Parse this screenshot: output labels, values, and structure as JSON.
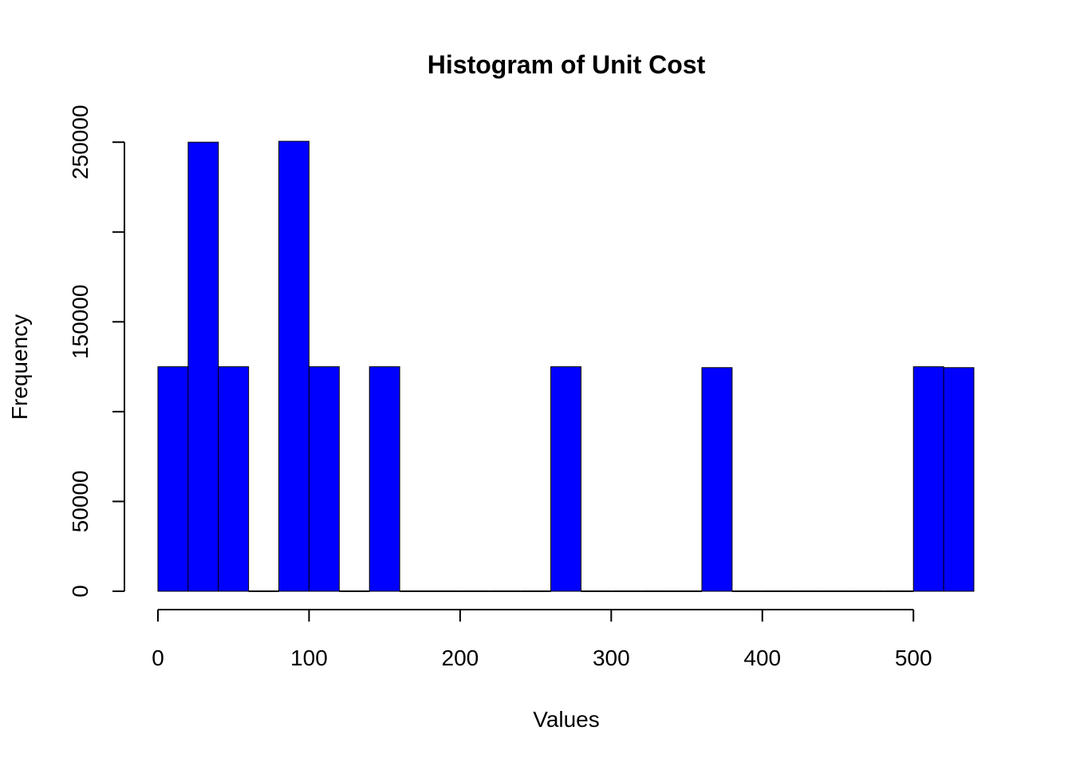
{
  "chart_data": {
    "type": "bar",
    "title": "Histogram of Unit Cost",
    "xlabel": "Values",
    "ylabel": "Frequency",
    "xlim": [
      0,
      540
    ],
    "ylim": [
      0,
      250000
    ],
    "x_ticks": [
      0,
      100,
      200,
      300,
      400,
      500
    ],
    "y_ticks": [
      0,
      50000,
      100000,
      150000,
      200000,
      250000
    ],
    "y_tick_labels": [
      "0",
      "50000",
      "",
      "150000",
      "",
      "250000"
    ],
    "bin_width": 20,
    "bins": [
      {
        "start": 0,
        "end": 20,
        "value": 125000
      },
      {
        "start": 20,
        "end": 40,
        "value": 250000
      },
      {
        "start": 40,
        "end": 60,
        "value": 125000
      },
      {
        "start": 60,
        "end": 80,
        "value": 0
      },
      {
        "start": 80,
        "end": 100,
        "value": 250500
      },
      {
        "start": 100,
        "end": 120,
        "value": 125000
      },
      {
        "start": 120,
        "end": 140,
        "value": 0
      },
      {
        "start": 140,
        "end": 160,
        "value": 125000
      },
      {
        "start": 160,
        "end": 180,
        "value": 0
      },
      {
        "start": 180,
        "end": 200,
        "value": 0
      },
      {
        "start": 200,
        "end": 220,
        "value": 0
      },
      {
        "start": 220,
        "end": 240,
        "value": 0
      },
      {
        "start": 240,
        "end": 260,
        "value": 0
      },
      {
        "start": 260,
        "end": 280,
        "value": 125000
      },
      {
        "start": 280,
        "end": 300,
        "value": 0
      },
      {
        "start": 300,
        "end": 320,
        "value": 0
      },
      {
        "start": 320,
        "end": 340,
        "value": 0
      },
      {
        "start": 340,
        "end": 360,
        "value": 0
      },
      {
        "start": 360,
        "end": 380,
        "value": 124500
      },
      {
        "start": 380,
        "end": 400,
        "value": 0
      },
      {
        "start": 400,
        "end": 420,
        "value": 0
      },
      {
        "start": 420,
        "end": 440,
        "value": 0
      },
      {
        "start": 440,
        "end": 460,
        "value": 0
      },
      {
        "start": 460,
        "end": 480,
        "value": 0
      },
      {
        "start": 480,
        "end": 500,
        "value": 0
      },
      {
        "start": 500,
        "end": 520,
        "value": 125000
      },
      {
        "start": 520,
        "end": 540,
        "value": 124500
      }
    ],
    "bar_color": "#0000FF",
    "bar_border_color": "#000000",
    "grid": false,
    "legend": "none"
  }
}
